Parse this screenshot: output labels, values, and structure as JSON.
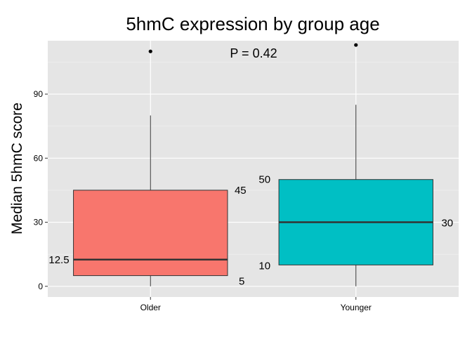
{
  "chart_data": {
    "type": "boxplot",
    "title": "5hmC expression by group age",
    "xlabel": "",
    "ylabel": "Median 5hmC score",
    "ylim": [
      -5,
      115
    ],
    "yticks": [
      "0",
      "30",
      "60",
      "90"
    ],
    "grid": true,
    "annotation": "P = 0.42",
    "categories": [
      "Older",
      "Younger"
    ],
    "boxes": [
      {
        "name": "Older",
        "color": "#F8766D",
        "min": 0,
        "q1": 5,
        "median": 12.5,
        "q3": 45,
        "max": 80,
        "outliers": [
          110
        ],
        "labels": {
          "q1": "5",
          "median": "12.5",
          "q3": "45"
        }
      },
      {
        "name": "Younger",
        "color": "#00BFC4",
        "min": 0,
        "q1": 10,
        "median": 30,
        "q3": 50,
        "max": 85,
        "outliers": [
          113
        ],
        "labels": {
          "q1": "10",
          "median": "30",
          "q3": "50"
        }
      }
    ]
  }
}
